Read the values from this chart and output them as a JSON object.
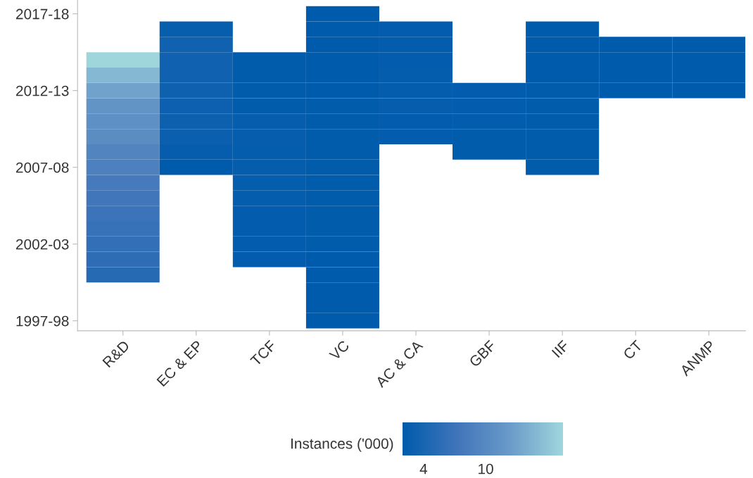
{
  "chart_data": {
    "type": "heatmap",
    "categories": [
      "R&D",
      "EC & EP",
      "TCF",
      "VC",
      "AC & CA",
      "GBF",
      "IIF",
      "CT",
      "ANMP"
    ],
    "y_categories": [
      "2017-18",
      null,
      null,
      null,
      null,
      "2012-13",
      null,
      null,
      null,
      null,
      "2007-08",
      null,
      null,
      null,
      null,
      "2002-03",
      null,
      null,
      null,
      null,
      "1997-98"
    ],
    "cells": [
      [
        null,
        null,
        null,
        2.1,
        null,
        null,
        null,
        null,
        null
      ],
      [
        null,
        2.6,
        null,
        2.1,
        2.3,
        null,
        2.1,
        null,
        null
      ],
      [
        null,
        3.3,
        null,
        2.1,
        2.3,
        null,
        2.1,
        2.1,
        2.1
      ],
      [
        17.5,
        3.3,
        2.2,
        2.1,
        2.3,
        null,
        2.1,
        2.1,
        2.1
      ],
      [
        15,
        3.3,
        2.2,
        2.1,
        2.4,
        null,
        2.1,
        2.1,
        2.1
      ],
      [
        13,
        3.2,
        2.2,
        2.1,
        2.4,
        2.3,
        2.2,
        2.1,
        2.1
      ],
      [
        11.5,
        3.1,
        2.2,
        2.2,
        2.5,
        2.3,
        2.2,
        null,
        null
      ],
      [
        11,
        3.0,
        2.5,
        2.2,
        2.3,
        2.3,
        2.2,
        null,
        null
      ],
      [
        10.5,
        2.8,
        2.5,
        2.2,
        2.3,
        2.2,
        2.2,
        null,
        null
      ],
      [
        9.5,
        2.5,
        2.4,
        2.2,
        null,
        2.2,
        2.2,
        null,
        null
      ],
      [
        8.8,
        2.1,
        2.4,
        2.2,
        null,
        null,
        2.2,
        null,
        null
      ],
      [
        8,
        null,
        2.4,
        2.2,
        null,
        null,
        null,
        null,
        null
      ],
      [
        7.5,
        null,
        2.4,
        2.2,
        null,
        null,
        null,
        null,
        null
      ],
      [
        7,
        null,
        2.3,
        2.2,
        null,
        null,
        null,
        null,
        null
      ],
      [
        6.5,
        null,
        2.3,
        2.2,
        null,
        null,
        null,
        null,
        null
      ],
      [
        6.2,
        null,
        2.3,
        2.2,
        null,
        null,
        null,
        null,
        null
      ],
      [
        5.8,
        null,
        2.3,
        2.1,
        null,
        null,
        null,
        null,
        null
      ],
      [
        5.2,
        null,
        null,
        2.1,
        null,
        null,
        null,
        null,
        null
      ],
      [
        null,
        null,
        null,
        2.1,
        null,
        null,
        null,
        null,
        null
      ],
      [
        null,
        null,
        null,
        2.1,
        null,
        null,
        null,
        null,
        null
      ],
      [
        null,
        null,
        null,
        2.1,
        null,
        null,
        null,
        null,
        null
      ]
    ],
    "clabel": "Instances ('000)",
    "clim": [
      2,
      17.5
    ],
    "cticks": [
      4,
      10
    ],
    "grid": false
  }
}
